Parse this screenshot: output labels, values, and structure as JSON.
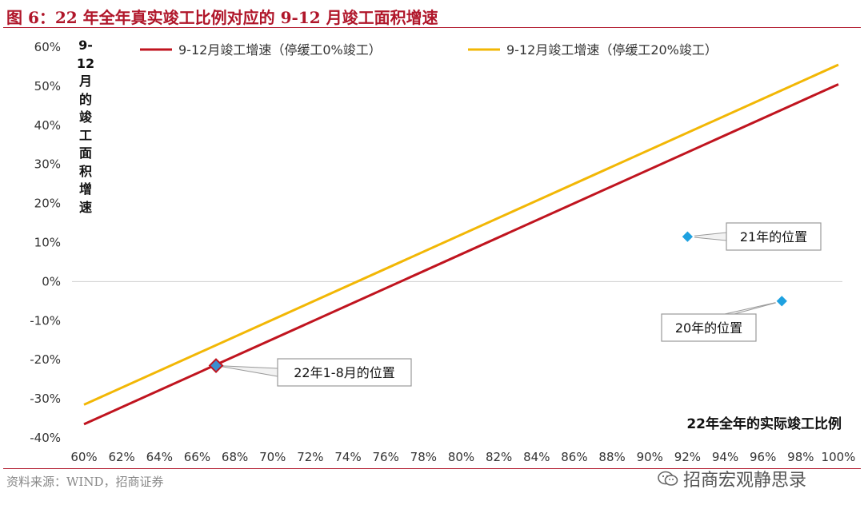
{
  "figure": {
    "title": "图 6：22 年全年真实竣工比例对应的 9-12 月竣工面积增速",
    "source": "资料来源：WIND，招商证券",
    "watermark": "招商宏观静思录"
  },
  "chart_data": {
    "type": "line",
    "title": "22 年全年真实竣工比例对应的 9-12 月竣工面积增速",
    "xlabel": "22年全年的实际竣工比例",
    "ylabel": "9-12月的竣工面积增速",
    "ylabel_chars": [
      "9-",
      "12",
      "月",
      "的",
      "竣",
      "工",
      "面",
      "积",
      "增",
      "速"
    ],
    "x_ticks": [
      "60%",
      "62%",
      "64%",
      "66%",
      "68%",
      "70%",
      "72%",
      "74%",
      "76%",
      "78%",
      "80%",
      "82%",
      "84%",
      "86%",
      "88%",
      "90%",
      "92%",
      "94%",
      "96%",
      "98%",
      "100%"
    ],
    "y_ticks": [
      "60%",
      "50%",
      "40%",
      "30%",
      "20%",
      "10%",
      "0%",
      "-10%",
      "-20%",
      "-30%",
      "-40%"
    ],
    "xlim": [
      60,
      100
    ],
    "ylim": [
      -40,
      60
    ],
    "series": [
      {
        "name": "9-12月竣工增速（停缓工0%竣工）",
        "color": "#c0141f",
        "x": [
          60,
          100
        ],
        "y": [
          -36.5,
          50.5
        ]
      },
      {
        "name": "9-12月竣工增速（停缓工20%竣工）",
        "color": "#f2b705",
        "x": [
          60,
          100
        ],
        "y": [
          -31.5,
          55.5
        ]
      }
    ],
    "points": [
      {
        "label": "22年1-8月的位置",
        "x": 67,
        "y": -21.5,
        "color": "#c0141f"
      },
      {
        "label": "21年的位置",
        "x": 92,
        "y": 11.5,
        "color": "#1ea1e0"
      },
      {
        "label": "20年的位置",
        "x": 97,
        "y": -5,
        "color": "#1ea1e0"
      }
    ],
    "legend_position": "top"
  }
}
